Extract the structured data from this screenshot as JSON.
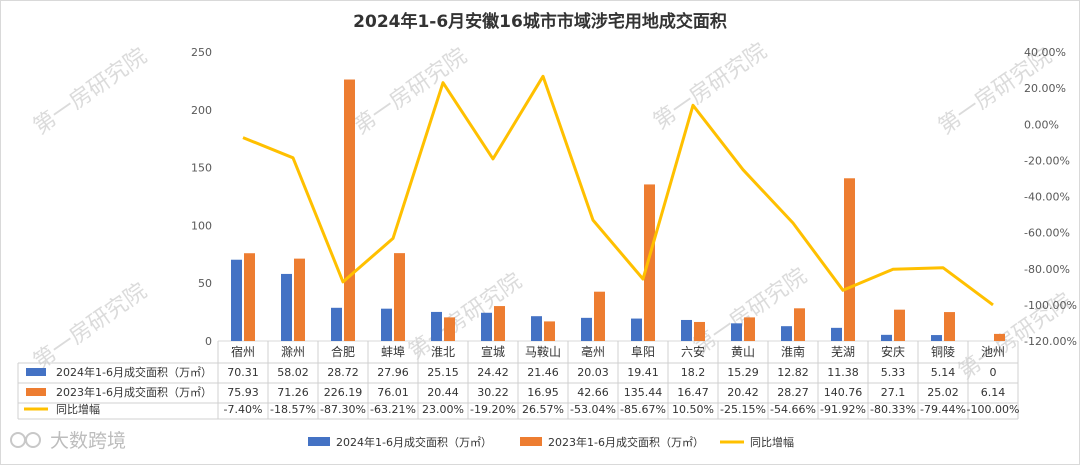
{
  "chart_data": {
    "type": "bar",
    "title": "2024年1-6月安徽16城市市域涉宅用地成交面积",
    "categories": [
      "宿州",
      "滁州",
      "合肥",
      "蚌埠",
      "淮北",
      "宣城",
      "马鞍山",
      "亳州",
      "阜阳",
      "六安",
      "黄山",
      "淮南",
      "芜湖",
      "安庆",
      "铜陵",
      "池州"
    ],
    "series": [
      {
        "name": "2024年1-6月成交面积（万㎡）",
        "kind": "bar",
        "color": "#4472C4",
        "values": [
          70.31,
          58.02,
          28.72,
          27.96,
          25.15,
          24.42,
          21.46,
          20.03,
          19.41,
          18.2,
          15.29,
          12.82,
          11.38,
          5.33,
          5.14,
          0
        ],
        "labels": [
          "70.31",
          "58.02",
          "28.72",
          "27.96",
          "25.15",
          "24.42",
          "21.46",
          "20.03",
          "19.41",
          "18.2",
          "15.29",
          "12.82",
          "11.38",
          "5.33",
          "5.14",
          "0"
        ]
      },
      {
        "name": "2023年1-6月成交面积（万㎡）",
        "kind": "bar",
        "color": "#ED7D31",
        "values": [
          75.93,
          71.26,
          226.19,
          76.01,
          20.44,
          30.22,
          16.95,
          42.66,
          135.44,
          16.47,
          20.42,
          28.27,
          140.76,
          27.1,
          25.02,
          6.14
        ],
        "labels": [
          "75.93",
          "71.26",
          "226.19",
          "76.01",
          "20.44",
          "30.22",
          "16.95",
          "42.66",
          "135.44",
          "16.47",
          "20.42",
          "28.27",
          "140.76",
          "27.1",
          "25.02",
          "6.14"
        ]
      },
      {
        "name": "同比增幅",
        "kind": "line",
        "color": "#FFC000",
        "axis": "right",
        "values": [
          -7.4,
          -18.57,
          -87.3,
          -63.21,
          23.0,
          -19.2,
          26.57,
          -53.04,
          -85.67,
          10.5,
          -25.15,
          -54.66,
          -91.92,
          -80.33,
          -79.44,
          -100.0
        ],
        "labels": [
          "-7.40%",
          "-18.57%",
          "-87.30%",
          "-63.21%",
          "23.00%",
          "-19.20%",
          "26.57%",
          "-53.04%",
          "-85.67%",
          "10.50%",
          "-25.15%",
          "-54.66%",
          "-91.92%",
          "-80.33%",
          "-79.44%",
          "-100.00%"
        ]
      }
    ],
    "y_left": {
      "min": 0,
      "max": 250,
      "step": 50,
      "ticks": [
        "0",
        "50",
        "100",
        "150",
        "200",
        "250"
      ]
    },
    "y_right": {
      "min": -120,
      "max": 40,
      "step": 20,
      "ticks": [
        "-120.00%",
        "-100.00%",
        "-80.00%",
        "-60.00%",
        "-40.00%",
        "-20.00%",
        "0.00%",
        "20.00%",
        "40.00%"
      ]
    },
    "grid": false,
    "legend_position": "bottom",
    "data_table": true
  },
  "watermark": "第一房研究院",
  "logo_text": "大数跨境"
}
